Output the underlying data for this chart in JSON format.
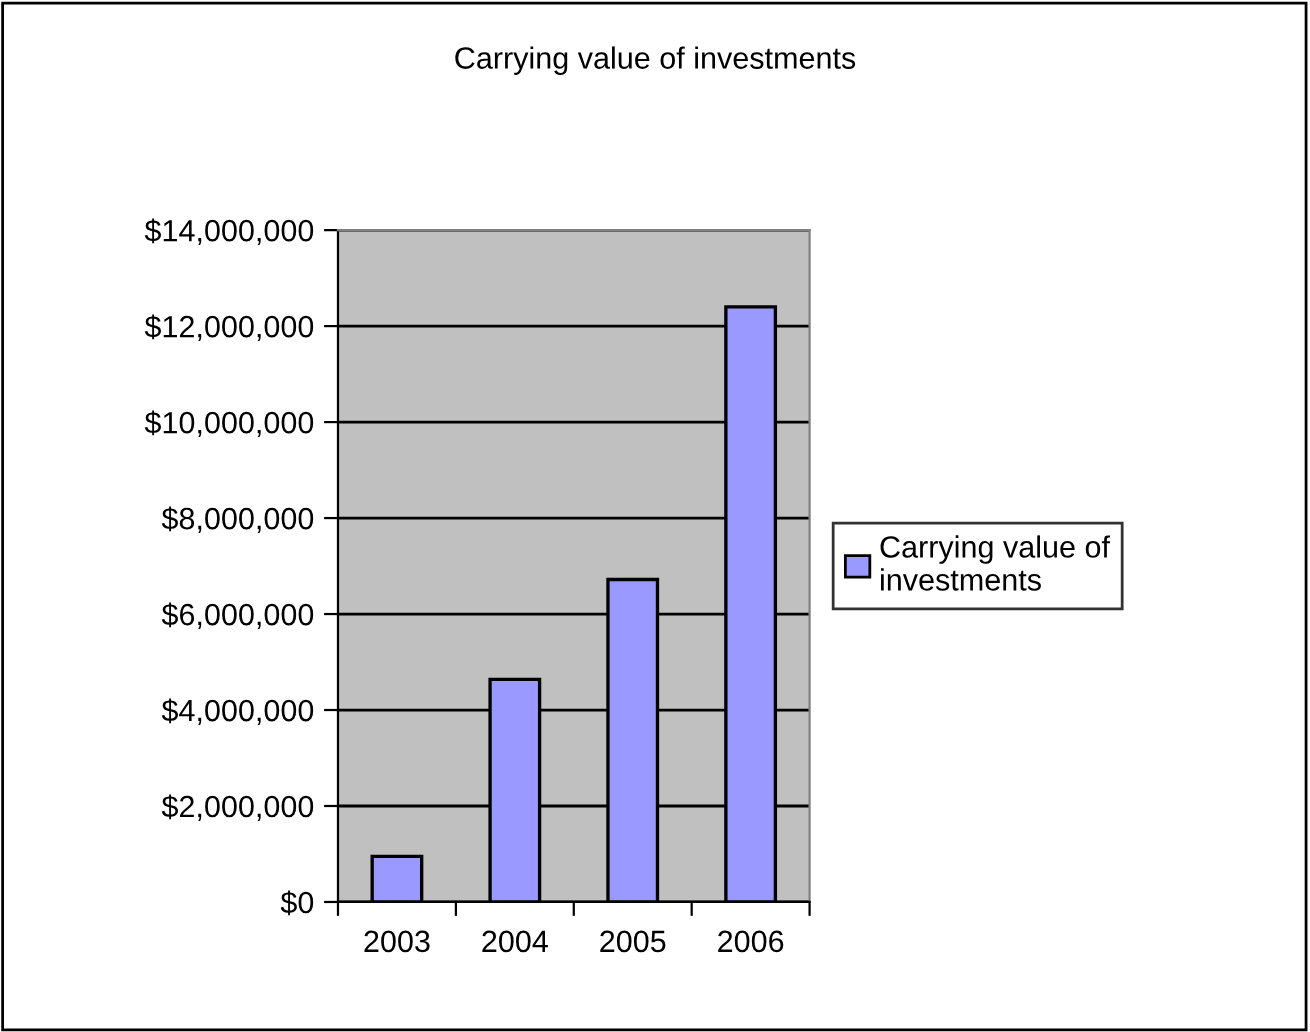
{
  "chart_data": {
    "type": "bar",
    "title": "Carrying value of investments",
    "categories": [
      "2003",
      "2004",
      "2005",
      "2006"
    ],
    "series": [
      {
        "name": "Carrying value of\ninvestments",
        "color": "#9999ff",
        "values": [
          950000,
          4640000,
          6720000,
          12400000
        ]
      }
    ],
    "ylim": [
      0,
      14000000
    ],
    "yticks": [
      {
        "value": 0,
        "label": "$0"
      },
      {
        "value": 2000000,
        "label": "$2,000,000"
      },
      {
        "value": 4000000,
        "label": "$4,000,000"
      },
      {
        "value": 6000000,
        "label": "$6,000,000"
      },
      {
        "value": 8000000,
        "label": "$8,000,000"
      },
      {
        "value": 10000000,
        "label": "$10,000,000"
      },
      {
        "value": 12000000,
        "label": "$12,000,000"
      },
      {
        "value": 14000000,
        "label": "$14,000,000"
      }
    ],
    "grid": "y",
    "legend": "right"
  }
}
